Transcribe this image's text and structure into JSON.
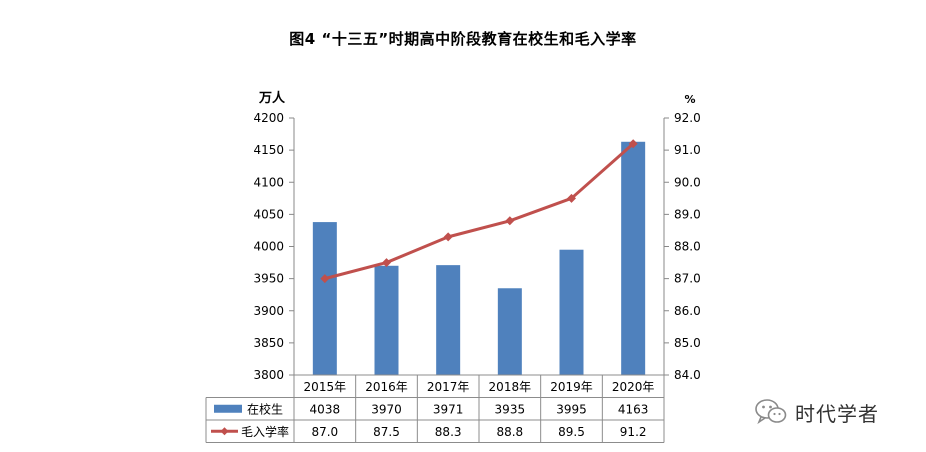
{
  "title": "图4 “十三五”时期高中阶段教育在校生和毛入学率",
  "watermark": "时代学者",
  "chart_data": {
    "type": "bar",
    "categories": [
      "2015年",
      "2016年",
      "2017年",
      "2018年",
      "2019年",
      "2020年"
    ],
    "series": [
      {
        "name": "在校生",
        "kind": "bar",
        "axis": "left",
        "color": "#4f81bd",
        "values": [
          4038,
          3970,
          3971,
          3935,
          3995,
          4163
        ],
        "labels": [
          "4038",
          "3970",
          "3971",
          "3935",
          "3995",
          "4163"
        ]
      },
      {
        "name": "毛入学率",
        "kind": "line",
        "axis": "right",
        "color": "#c0504d",
        "values": [
          87.0,
          87.5,
          88.3,
          88.8,
          89.5,
          91.2
        ],
        "labels": [
          "87.0",
          "87.5",
          "88.3",
          "88.8",
          "89.5",
          "91.2"
        ]
      }
    ],
    "y_left": {
      "unit": "万人",
      "ylim": [
        3800,
        4200
      ],
      "ticks": [
        "3800",
        "3850",
        "3900",
        "3950",
        "4000",
        "4050",
        "4100",
        "4150",
        "4200"
      ]
    },
    "y_right": {
      "unit": "%",
      "ylim": [
        84.0,
        92.0
      ],
      "ticks": [
        "84.0",
        "85.0",
        "86.0",
        "87.0",
        "88.0",
        "89.0",
        "90.0",
        "91.0",
        "92.0"
      ]
    },
    "grid": false,
    "legend": "data-table"
  }
}
